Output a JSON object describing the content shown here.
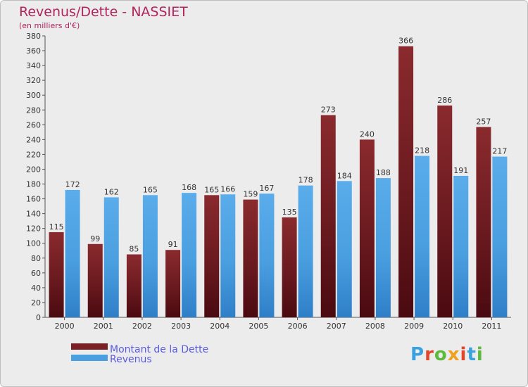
{
  "chart_data": {
    "type": "bar",
    "title": "Revenus/Dette - NASSIET",
    "subtitle": "(en milliers d'€)",
    "categories": [
      "2000",
      "2001",
      "2002",
      "2003",
      "2004",
      "2005",
      "2006",
      "2007",
      "2008",
      "2009",
      "2010",
      "2011"
    ],
    "series": [
      {
        "name": "Montant de la Dette",
        "color": "#7a1f24",
        "values": [
          115,
          99,
          85,
          91,
          165,
          159,
          135,
          273,
          240,
          366,
          286,
          257
        ]
      },
      {
        "name": "Revenus",
        "color": "#4a9fe0",
        "values": [
          172,
          162,
          165,
          168,
          166,
          167,
          178,
          184,
          188,
          218,
          191,
          217
        ]
      }
    ],
    "ylim": [
      0,
      380
    ],
    "ytick_step": 20,
    "grid": false,
    "legend_position": "bottom-left"
  },
  "logo": {
    "text": "Proxiti",
    "colors": [
      "#3aa0e0",
      "#e0462a",
      "#5cba3c",
      "#f0a020",
      "#e0462a",
      "#3aa0e0",
      "#5cba3c"
    ]
  }
}
